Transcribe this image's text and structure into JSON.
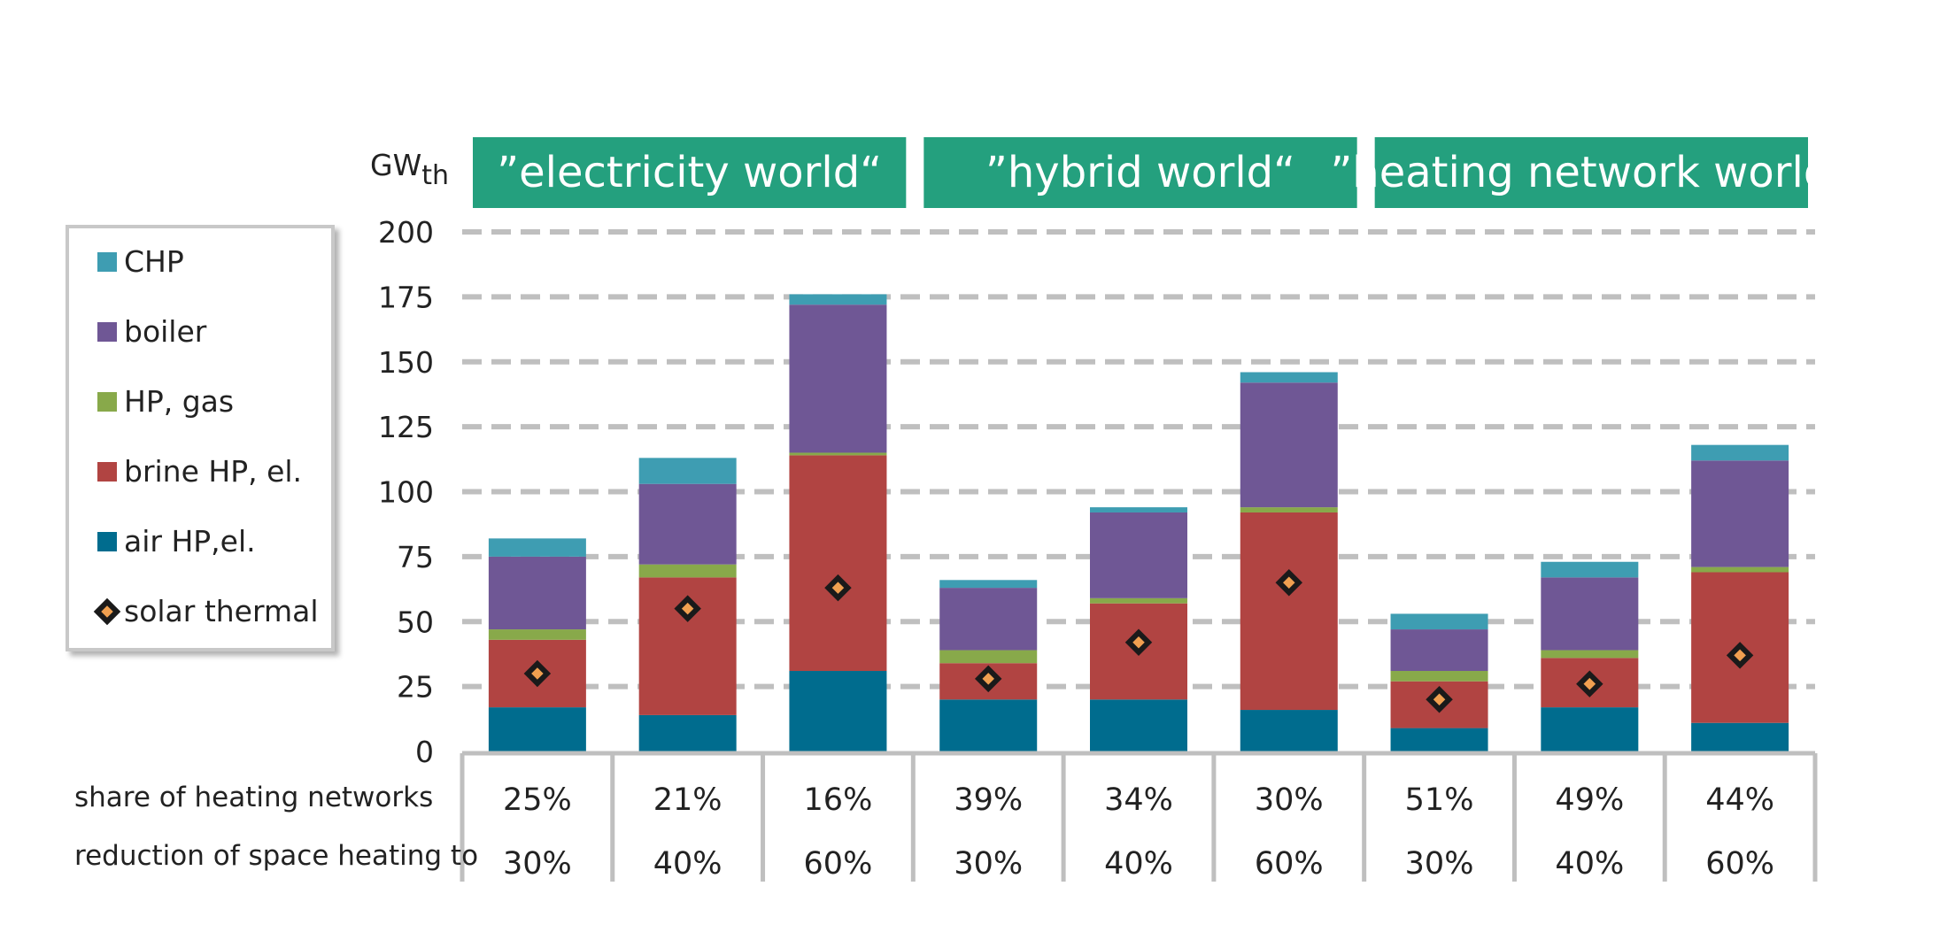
{
  "chart_data": {
    "type": "bar",
    "stacked": true,
    "unit_label": {
      "main": "GW",
      "sub": "th"
    },
    "ylim": [
      0,
      200
    ],
    "yticks": [
      0,
      25,
      50,
      75,
      100,
      125,
      150,
      175,
      200
    ],
    "grid": true,
    "legend_position": "left",
    "groups": [
      {
        "label": "”electricity world“",
        "first": 0,
        "last": 2
      },
      {
        "label": "”hybrid world“",
        "first": 3,
        "last": 5
      },
      {
        "label": "”heating network world“",
        "first": 6,
        "last": 8
      }
    ],
    "row_labels": {
      "share": "share of heating networks",
      "reduction": "reduction of space heating to"
    },
    "categories": [
      {
        "share": "25%",
        "reduction": "30%"
      },
      {
        "share": "21%",
        "reduction": "40%"
      },
      {
        "share": "16%",
        "reduction": "60%"
      },
      {
        "share": "39%",
        "reduction": "30%"
      },
      {
        "share": "34%",
        "reduction": "40%"
      },
      {
        "share": "30%",
        "reduction": "60%"
      },
      {
        "share": "51%",
        "reduction": "30%"
      },
      {
        "share": "49%",
        "reduction": "40%"
      },
      {
        "share": "44%",
        "reduction": "60%"
      }
    ],
    "series": [
      {
        "name": "air HP,el.",
        "color": "#006c8e",
        "values": [
          17,
          14,
          31,
          20,
          20,
          16,
          9,
          17,
          11
        ]
      },
      {
        "name": "brine HP, el.",
        "color": "#b14442",
        "values": [
          26,
          53,
          83,
          14,
          37,
          76,
          18,
          19,
          58
        ]
      },
      {
        "name": "HP, gas",
        "color": "#88a94a",
        "values": [
          4,
          5,
          1,
          5,
          2,
          2,
          4,
          3,
          2
        ]
      },
      {
        "name": "boiler",
        "color": "#6f5795",
        "values": [
          28,
          31,
          57,
          24,
          33,
          48,
          16,
          28,
          41
        ]
      },
      {
        "name": "CHP",
        "color": "#3e9db2",
        "values": [
          7,
          10,
          4,
          3,
          2,
          4,
          6,
          6,
          6
        ]
      }
    ],
    "markers": {
      "name": "solar thermal",
      "fill": "#f0a050",
      "stroke": "#1a1a1a",
      "values": [
        30,
        55,
        63,
        28,
        42,
        65,
        20,
        26,
        37
      ]
    },
    "legend_order": [
      "CHP",
      "boiler",
      "HP, gas",
      "brine HP, el.",
      "air HP,el.",
      "solar thermal"
    ],
    "colors": {
      "banner": "#24a07e",
      "grid": "#bfbfbf",
      "axis": "#bfbfbf",
      "text": "#222222"
    }
  }
}
